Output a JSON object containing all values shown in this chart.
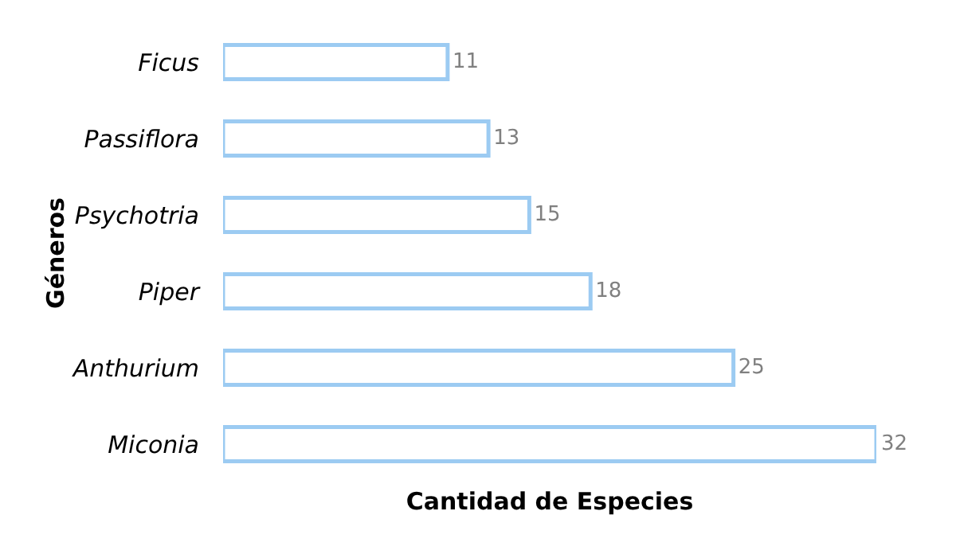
{
  "chart_data": {
    "type": "bar",
    "orientation": "horizontal",
    "categories": [
      "Ficus",
      "Passiflora",
      "Psychotria",
      "Piper",
      "Anthurium",
      "Miconia"
    ],
    "values": [
      11,
      13,
      15,
      18,
      25,
      32
    ],
    "color": "#9ccbf2",
    "xlabel": "Cantidad de Especies",
    "ylabel": "Géneros",
    "xlim": [
      0,
      32
    ],
    "data_labels": true,
    "tick_labels": "y"
  }
}
